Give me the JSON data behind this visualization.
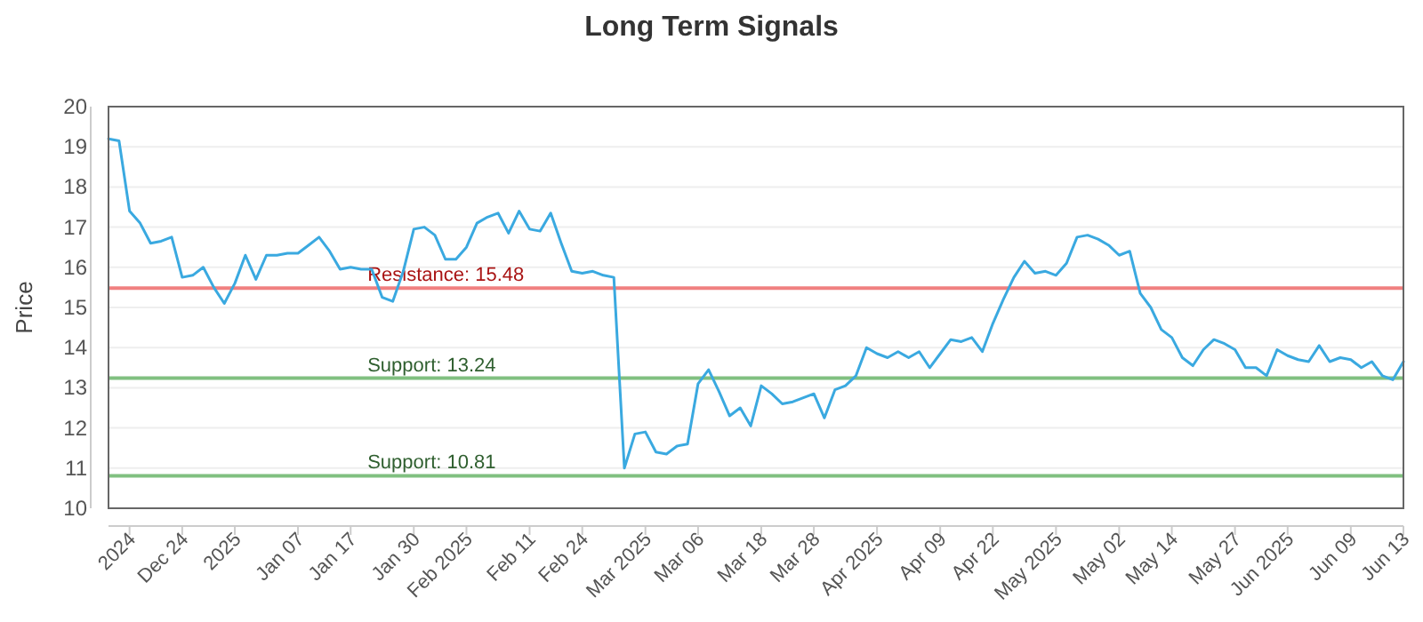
{
  "chart_data": {
    "type": "line",
    "title": "Long Term Signals",
    "ylabel": "Price",
    "categories": [
      null,
      null,
      "2024",
      null,
      null,
      null,
      null,
      "Dec 24",
      null,
      null,
      null,
      null,
      "2025",
      null,
      null,
      null,
      null,
      null,
      "Jan 07",
      null,
      null,
      null,
      null,
      "Jan 17",
      null,
      null,
      null,
      null,
      null,
      "Jan 30",
      null,
      null,
      null,
      null,
      "Feb 2025",
      null,
      null,
      null,
      null,
      null,
      "Feb 11",
      null,
      null,
      null,
      null,
      "Feb 24",
      null,
      null,
      null,
      null,
      null,
      "Mar 2025",
      null,
      null,
      null,
      null,
      "Mar 06",
      null,
      null,
      null,
      null,
      null,
      "Mar 18",
      null,
      null,
      null,
      null,
      "Mar 28",
      null,
      null,
      null,
      null,
      null,
      "Apr 2025",
      null,
      null,
      null,
      null,
      null,
      "Apr 09",
      null,
      null,
      null,
      null,
      "Apr 22",
      null,
      null,
      null,
      null,
      null,
      "May 2025",
      null,
      null,
      null,
      null,
      null,
      "May 02",
      null,
      null,
      null,
      null,
      "May 14",
      null,
      null,
      null,
      null,
      null,
      "May 27",
      null,
      null,
      null,
      null,
      "Jun 2025",
      null,
      null,
      null,
      null,
      null,
      "Jun 09",
      null,
      null,
      null,
      null,
      "Jun 13"
    ],
    "series": [
      {
        "color": "#3aa9e0",
        "values": [
          19.2,
          19.15,
          17.4,
          17.1,
          16.6,
          16.65,
          16.75,
          15.75,
          15.8,
          16.0,
          15.5,
          15.1,
          15.6,
          16.3,
          15.7,
          16.3,
          16.3,
          16.35,
          16.35,
          16.55,
          16.75,
          16.4,
          15.95,
          16.0,
          15.95,
          15.95,
          15.25,
          15.15,
          15.9,
          16.95,
          17.0,
          16.8,
          16.2,
          16.2,
          16.5,
          17.1,
          17.25,
          17.35,
          16.85,
          17.4,
          16.95,
          16.9,
          17.35,
          16.6,
          15.9,
          15.85,
          15.9,
          15.8,
          15.75,
          11.0,
          11.85,
          11.9,
          11.4,
          11.35,
          11.55,
          11.6,
          13.1,
          13.45,
          12.9,
          12.3,
          12.5,
          12.05,
          13.05,
          12.85,
          12.6,
          12.65,
          12.75,
          12.85,
          12.25,
          12.95,
          13.05,
          13.3,
          14.0,
          13.85,
          13.75,
          13.9,
          13.75,
          13.9,
          13.5,
          13.85,
          14.2,
          14.15,
          14.25,
          13.9,
          14.6,
          15.2,
          15.75,
          16.15,
          15.85,
          15.9,
          15.8,
          16.1,
          16.75,
          16.8,
          16.7,
          16.55,
          16.3,
          16.4,
          15.35,
          15.0,
          14.45,
          14.25,
          13.75,
          13.55,
          13.95,
          14.2,
          14.1,
          13.95,
          13.5,
          13.5,
          13.3,
          13.95,
          13.8,
          13.7,
          13.65,
          14.05,
          13.65,
          13.75,
          13.7,
          13.5,
          13.65,
          13.3,
          13.2,
          13.65
        ]
      }
    ],
    "ylim": [
      10,
      20
    ],
    "yticks": [
      10,
      11,
      12,
      13,
      14,
      15,
      16,
      17,
      18,
      19,
      20
    ],
    "grid": "y",
    "marker": "none",
    "line_style": "solid",
    "ref_lines": [
      {
        "axis": "y",
        "value": 15.48,
        "label": "Resistance: 15.48",
        "color": "#f08080"
      },
      {
        "axis": "y",
        "value": 13.24,
        "label": "Support: 13.24",
        "color": "#80c080"
      },
      {
        "axis": "y",
        "value": 10.81,
        "label": "Support: 10.81",
        "color": "#80c080"
      }
    ]
  }
}
